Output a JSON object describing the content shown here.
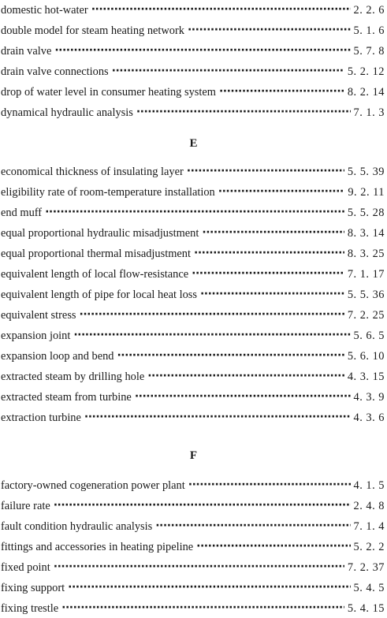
{
  "groups": [
    {
      "heading": "",
      "entries": [
        {
          "term": "domestic hot-water",
          "ref": "2. 2. 6"
        },
        {
          "term": "double model for steam heating network",
          "ref": "5. 1. 6"
        },
        {
          "term": "drain valve",
          "ref": "5. 7. 8"
        },
        {
          "term": "drain valve connections",
          "ref": "5. 2. 12"
        },
        {
          "term": "drop of water level in consumer heating system",
          "ref": "8. 2. 14"
        },
        {
          "term": "dynamical hydraulic analysis",
          "ref": "7. 1. 3"
        }
      ]
    },
    {
      "heading": "E",
      "entries": [
        {
          "term": "economical thickness of insulating layer",
          "ref": "5. 5. 39"
        },
        {
          "term": "eligibility rate of room-temperature installation",
          "ref": "9. 2. 11"
        },
        {
          "term": "end muff",
          "ref": "5. 5. 28"
        },
        {
          "term": "equal proportional hydraulic misadjustment",
          "ref": "8. 3. 14"
        },
        {
          "term": "equal proportional thermal misadjustment",
          "ref": "8. 3. 25"
        },
        {
          "term": "equivalent length of local flow-resistance",
          "ref": "7. 1. 17"
        },
        {
          "term": "equivalent length of pipe for local heat loss",
          "ref": "5. 5. 36"
        },
        {
          "term": "equivalent stress",
          "ref": "7. 2. 25"
        },
        {
          "term": "expansion joint",
          "ref": "5. 6. 5"
        },
        {
          "term": "expansion loop and bend",
          "ref": "5. 6. 10"
        },
        {
          "term": "extracted steam by drilling hole",
          "ref": "4. 3. 15"
        },
        {
          "term": "extracted steam from turbine",
          "ref": "4. 3. 9"
        },
        {
          "term": "extraction turbine",
          "ref": "4. 3. 6"
        }
      ]
    },
    {
      "heading": "F",
      "entries": [
        {
          "term": "factory-owned cogeneration power plant",
          "ref": "4. 1. 5"
        },
        {
          "term": "failure rate",
          "ref": "2. 4. 8"
        },
        {
          "term": "fault condition hydraulic analysis",
          "ref": "7. 1. 4"
        },
        {
          "term": "fittings and accessories in heating pipeline",
          "ref": "5. 2. 2"
        },
        {
          "term": "fixed point",
          "ref": "7. 2. 37"
        },
        {
          "term": "fixing support",
          "ref": "5. 4. 5"
        },
        {
          "term": "fixing trestle",
          "ref": "5. 4. 15"
        }
      ]
    }
  ]
}
